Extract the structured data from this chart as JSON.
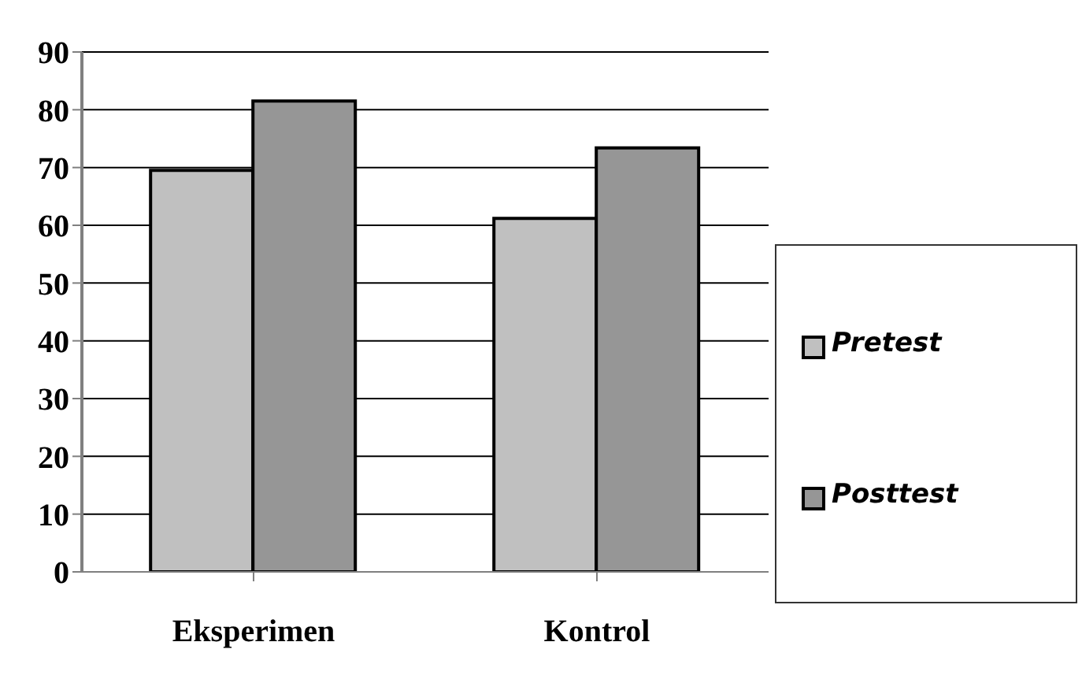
{
  "chart_data": {
    "type": "bar",
    "categories": [
      "Eksperimen",
      "Kontrol"
    ],
    "series": [
      {
        "name": "Pretest",
        "color": "#c0c0c0",
        "values": [
          69.5,
          61.2
        ]
      },
      {
        "name": "Posttest",
        "color": "#969696",
        "values": [
          81.5,
          73.4
        ]
      }
    ],
    "ylim": [
      0,
      90
    ],
    "yticks": [
      0,
      10,
      20,
      30,
      40,
      50,
      60,
      70,
      80,
      90
    ],
    "grid": "y",
    "legend": "right"
  }
}
